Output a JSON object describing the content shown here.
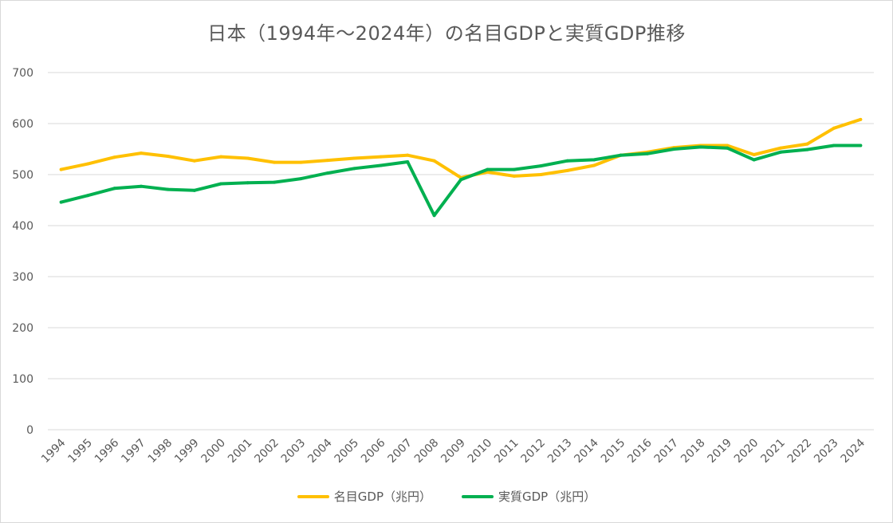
{
  "chart_data": {
    "type": "line",
    "title": "日本（1994年～2024年）の名目GDPと実質GDP推移",
    "x": [
      "1994",
      "1995",
      "1996",
      "1997",
      "1998",
      "1999",
      "2000",
      "2001",
      "2002",
      "2003",
      "2004",
      "2005",
      "2006",
      "2007",
      "2008",
      "2009",
      "2010",
      "2011",
      "2012",
      "2013",
      "2014",
      "2015",
      "2016",
      "2017",
      "2018",
      "2019",
      "2020",
      "2021",
      "2022",
      "2023",
      "2024"
    ],
    "ylim": [
      0,
      700
    ],
    "yticks": [
      0,
      100,
      200,
      300,
      400,
      500,
      600,
      700
    ],
    "grid": true,
    "legend": "bottom",
    "series": [
      {
        "name": "名目GDP（兆円）",
        "color": "#FFC000",
        "values": [
          510,
          521,
          534,
          542,
          536,
          527,
          535,
          532,
          524,
          524,
          528,
          532,
          535,
          538,
          527,
          494,
          505,
          497,
          500,
          508,
          518,
          538,
          544,
          553,
          557,
          557,
          539,
          552,
          560,
          591,
          608
        ]
      },
      {
        "name": "実質GDP（兆円）",
        "color": "#00B050",
        "values": [
          446,
          459,
          473,
          477,
          471,
          469,
          482,
          484,
          485,
          492,
          503,
          512,
          518,
          525,
          420,
          490,
          510,
          510,
          517,
          527,
          529,
          538,
          541,
          550,
          554,
          552,
          529,
          544,
          549,
          557,
          557
        ]
      }
    ]
  }
}
